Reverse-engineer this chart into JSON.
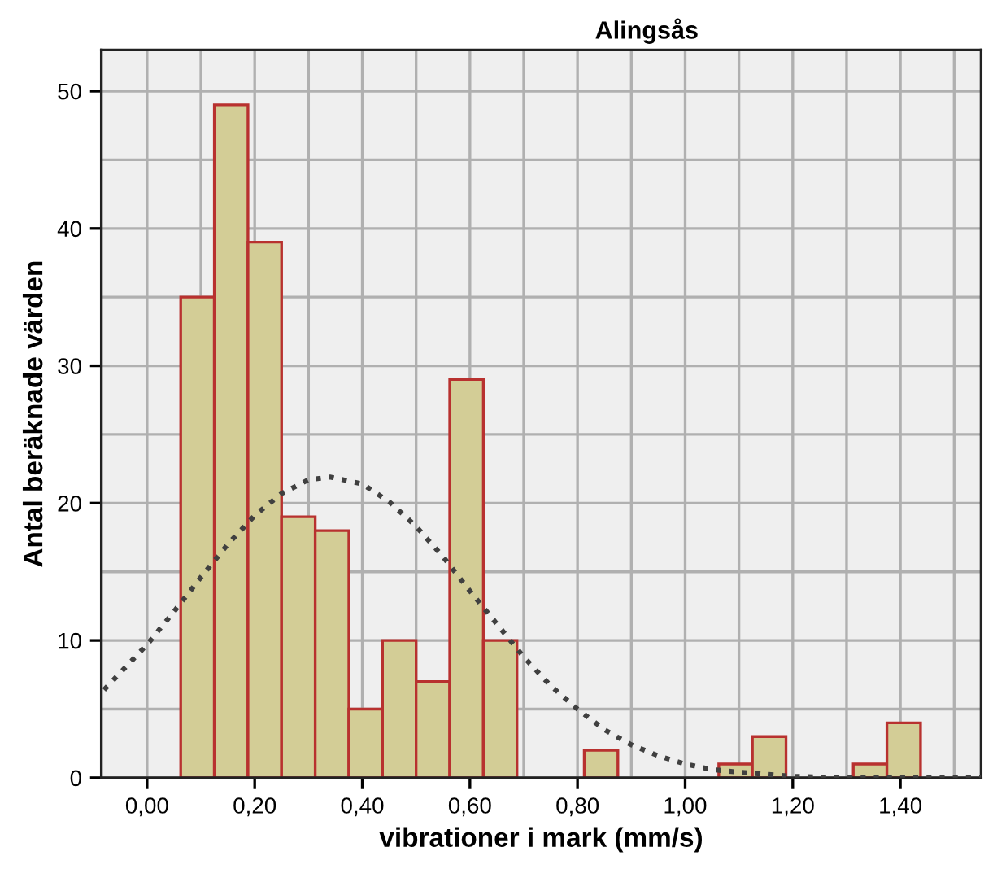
{
  "chart_data": {
    "type": "histogram",
    "title": "Alingsås",
    "xlabel": "vibrationer i mark (mm/s)",
    "ylabel": "Antal beräknade värden",
    "bins": [
      0.0625,
      0.125,
      0.1875,
      0.25,
      0.3125,
      0.375,
      0.4375,
      0.5,
      0.5625,
      0.625,
      0.6875,
      0.75,
      0.8125,
      0.875,
      0.9375,
      1.0,
      1.0625,
      1.125,
      1.1875,
      1.25,
      1.3125,
      1.375,
      1.4375
    ],
    "values": [
      35,
      49,
      39,
      19,
      18,
      5,
      10,
      7,
      29,
      10,
      0,
      0,
      2,
      0,
      0,
      0,
      1,
      3,
      0,
      0,
      1,
      4
    ],
    "color": "#d3cd96",
    "series": [
      {
        "type": "line",
        "color": "#404040",
        "line_style": "dotted",
        "x": [
          -0.08,
          0.0,
          0.05,
          0.1,
          0.15,
          0.2,
          0.25,
          0.3,
          0.34,
          0.4,
          0.45,
          0.5,
          0.55,
          0.6,
          0.65,
          0.7,
          0.75,
          0.8,
          0.85,
          0.9,
          0.95,
          1.0,
          1.05,
          1.1,
          1.2,
          1.3,
          1.55
        ],
        "values": [
          6.4,
          9.7,
          12.1,
          14.6,
          17.0,
          19.1,
          20.7,
          21.7,
          21.9,
          21.4,
          20.1,
          18.3,
          16.1,
          13.6,
          11.2,
          8.8,
          6.7,
          5.0,
          3.5,
          2.4,
          1.6,
          1.0,
          0.6,
          0.4,
          0.1,
          0.0,
          0.0
        ]
      }
    ],
    "xlim": [
      -0.085,
      1.55
    ],
    "ylim": [
      0,
      53
    ],
    "xticks": [
      {
        "value": 0.0,
        "label": "0,00"
      },
      {
        "value": 0.1,
        "label": null
      },
      {
        "value": 0.2,
        "label": "0,20"
      },
      {
        "value": 0.3,
        "label": null
      },
      {
        "value": 0.4,
        "label": "0,40"
      },
      {
        "value": 0.5,
        "label": null
      },
      {
        "value": 0.6,
        "label": "0,60"
      },
      {
        "value": 0.7,
        "label": null
      },
      {
        "value": 0.8,
        "label": "0,80"
      },
      {
        "value": 0.9,
        "label": null
      },
      {
        "value": 1.0,
        "label": "1,00"
      },
      {
        "value": 1.1,
        "label": null
      },
      {
        "value": 1.2,
        "label": "1,20"
      },
      {
        "value": 1.3,
        "label": null
      },
      {
        "value": 1.4,
        "label": "1,40"
      },
      {
        "value": 1.5,
        "label": null
      }
    ],
    "yticks": [
      0,
      {
        "value": 5,
        "label": null
      },
      10,
      {
        "value": 15,
        "label": null
      },
      20,
      {
        "value": 25,
        "label": null
      },
      30,
      {
        "value": 35,
        "label": null
      },
      40,
      {
        "value": 45,
        "label": null
      },
      50
    ],
    "grid": true,
    "legend": false
  }
}
